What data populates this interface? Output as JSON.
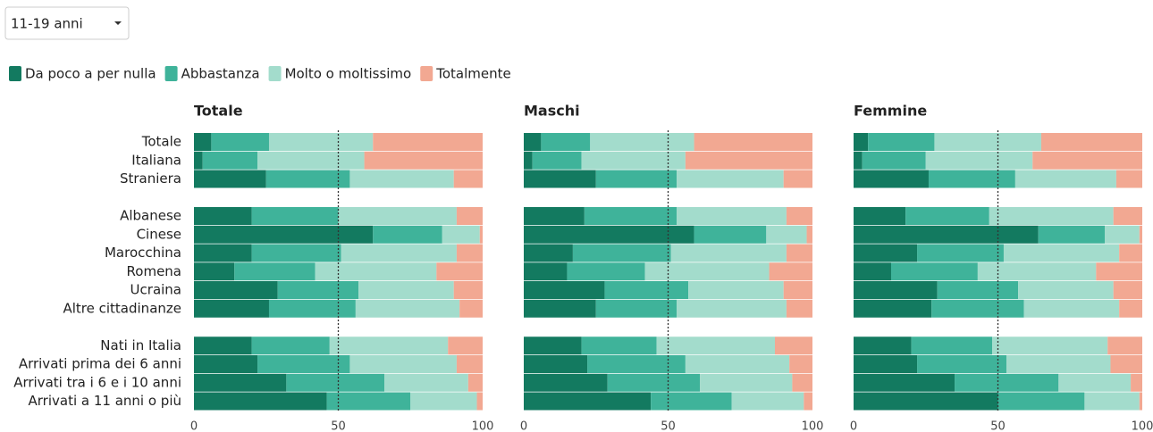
{
  "dropdown": "11-19 anni",
  "chart_data": [
    {
      "type": "stacked-barh",
      "title": "Totale",
      "categories": [
        "Totale",
        "Italiana",
        "Straniera",
        null,
        "Albanese",
        "Cinese",
        "Marocchina",
        "Romena",
        "Ucraina",
        "Altre cittadinanze",
        null,
        "Nati in Italia",
        "Arrivati prima dei 6 anni",
        "Arrivati tra i 6 e i 10 anni",
        "Arrivati a 11 anni o più"
      ],
      "series": [
        {
          "name": "Da poco a per nulla",
          "color": "#137a60",
          "values": [
            6,
            3,
            25,
            null,
            20,
            62,
            20,
            14,
            29,
            26,
            null,
            20,
            22,
            32,
            46
          ]
        },
        {
          "name": "Abbastanza",
          "color": "#3fb39a",
          "values": [
            20,
            19,
            29,
            null,
            30,
            24,
            31,
            28,
            28,
            30,
            null,
            27,
            32,
            34,
            29
          ]
        },
        {
          "name": "Molto o moltissimo",
          "color": "#a3dccc",
          "values": [
            36,
            37,
            36,
            null,
            41,
            13,
            40,
            42,
            33,
            36,
            null,
            41,
            37,
            29,
            23
          ]
        },
        {
          "name": "Totalmente",
          "color": "#f2a892",
          "values": [
            38,
            41,
            10,
            null,
            9,
            1,
            9,
            16,
            10,
            8,
            null,
            12,
            9,
            5,
            2
          ]
        }
      ],
      "xlim": [
        0,
        100
      ],
      "xticks": [
        0,
        50,
        100
      ],
      "refline": 50
    },
    {
      "type": "stacked-barh",
      "title": "Maschi",
      "series": [
        {
          "color": "#137a60",
          "values": [
            6,
            3,
            25,
            null,
            21,
            59,
            17,
            15,
            28,
            25,
            null,
            20,
            22,
            29,
            44
          ]
        },
        {
          "color": "#3fb39a",
          "values": [
            17,
            17,
            28,
            null,
            32,
            25,
            34,
            27,
            29,
            28,
            null,
            26,
            34,
            32,
            28
          ]
        },
        {
          "color": "#a3dccc",
          "values": [
            36,
            36,
            37,
            null,
            38,
            14,
            40,
            43,
            33,
            38,
            null,
            41,
            36,
            32,
            25
          ]
        },
        {
          "color": "#f2a892",
          "values": [
            41,
            44,
            10,
            null,
            9,
            2,
            9,
            15,
            10,
            9,
            null,
            13,
            8,
            7,
            3
          ]
        }
      ],
      "xlim": [
        0,
        100
      ],
      "xticks": [
        0,
        50,
        100
      ],
      "refline": 50
    },
    {
      "type": "stacked-barh",
      "title": "Femmine",
      "series": [
        {
          "color": "#137a60",
          "values": [
            5,
            3,
            26,
            null,
            18,
            64,
            22,
            13,
            29,
            27,
            null,
            20,
            22,
            35,
            50
          ]
        },
        {
          "color": "#3fb39a",
          "values": [
            23,
            22,
            30,
            null,
            29,
            23,
            30,
            30,
            28,
            32,
            null,
            28,
            31,
            36,
            30
          ]
        },
        {
          "color": "#a3dccc",
          "values": [
            37,
            37,
            35,
            null,
            43,
            12,
            40,
            41,
            33,
            33,
            null,
            40,
            36,
            25,
            19
          ]
        },
        {
          "color": "#f2a892",
          "values": [
            35,
            38,
            9,
            null,
            10,
            1,
            8,
            16,
            10,
            8,
            null,
            12,
            11,
            4,
            1
          ]
        }
      ],
      "xlim": [
        0,
        100
      ],
      "xticks": [
        0,
        50,
        100
      ],
      "refline": 50
    }
  ]
}
